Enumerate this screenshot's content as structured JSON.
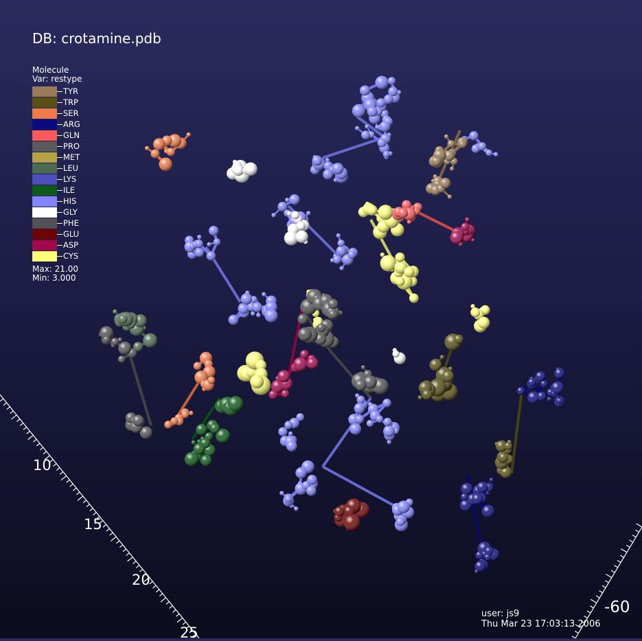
{
  "db_title": "DB: crotamine.pdb",
  "legend": {
    "title": "Molecule",
    "var": "Var: restype",
    "entries": [
      {
        "label": "TYR",
        "color": "#9a7b59"
      },
      {
        "label": "TRP",
        "color": "#585016"
      },
      {
        "label": "SER",
        "color": "#f07a4a"
      },
      {
        "label": "ARG",
        "color": "#0b0b80"
      },
      {
        "label": "GLN",
        "color": "#fb5a5a"
      },
      {
        "label": "PRO",
        "color": "#5a5a5a"
      },
      {
        "label": "MET",
        "color": "#b6a244"
      },
      {
        "label": "LEU",
        "color": "#4f6a52"
      },
      {
        "label": "LYS",
        "color": "#4d4fbc"
      },
      {
        "label": "ILE",
        "color": "#0e5a1a"
      },
      {
        "label": "HIS",
        "color": "#8084ff"
      },
      {
        "label": "GLY",
        "color": "#ffffff"
      },
      {
        "label": "PHE",
        "color": "#545254"
      },
      {
        "label": "GLU",
        "color": "#6e0505"
      },
      {
        "label": "ASP",
        "color": "#a5094d"
      },
      {
        "label": "CYS",
        "color": "#fefe78"
      }
    ],
    "max": "Max:  21.00",
    "min": "Min:  3.000"
  },
  "axis_labels": [
    "10",
    "15",
    "20",
    "25",
    "-60"
  ],
  "user": "user: js9",
  "timestamp": "Thu Mar 23 17:03:13 2006"
}
